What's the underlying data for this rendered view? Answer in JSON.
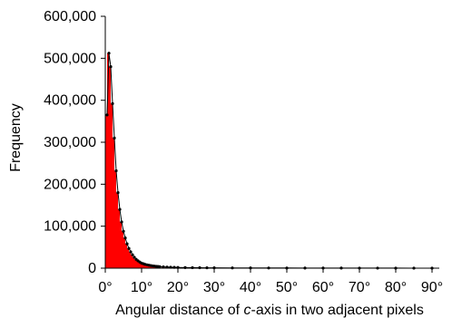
{
  "chart_data": {
    "type": "bar",
    "xlabel_parts": {
      "before": "Angular distance of ",
      "italic": "c",
      "after": "-axis in two adjacent pixels"
    },
    "ylabel": "Frequency",
    "xlim": [
      0,
      92
    ],
    "ylim": [
      0,
      600000
    ],
    "x_tick_values": [
      0,
      10,
      20,
      30,
      40,
      50,
      60,
      70,
      80,
      90
    ],
    "x_tick_labels": [
      "0°",
      "10°",
      "20°",
      "30°",
      "40°",
      "50°",
      "60°",
      "70°",
      "80°",
      "90°"
    ],
    "y_tick_values": [
      0,
      100000,
      200000,
      300000,
      400000,
      500000,
      600000
    ],
    "y_tick_labels": [
      "0",
      "100,000",
      "200,000",
      "300,000",
      "400,000",
      "500,000",
      "600,000"
    ],
    "bar_width_deg": 0.5,
    "bar_color": "#ff0000",
    "marker_color": "#000000",
    "x": [
      0.5,
      1.0,
      1.5,
      2.0,
      2.5,
      3.0,
      3.5,
      4.0,
      4.5,
      5.0,
      5.5,
      6.0,
      6.5,
      7.0,
      7.5,
      8.0,
      8.5,
      9.0,
      9.5,
      10.0,
      10.5,
      11.0,
      11.5,
      12.0,
      12.5,
      13.0,
      13.5,
      14.0,
      14.5,
      15.0,
      16.0,
      17.0,
      18.0,
      19.0,
      20.0,
      22.0,
      24.0,
      26.0,
      28.0,
      30.0,
      35.0,
      40.0,
      45.0,
      50.0,
      55.0,
      60.0,
      65.0,
      70.0,
      75.0,
      80.0,
      85.0,
      90.0
    ],
    "values": [
      365000,
      512000,
      480000,
      392000,
      310000,
      232000,
      180000,
      140000,
      110000,
      88000,
      72000,
      58000,
      47000,
      39000,
      32000,
      26000,
      21000,
      17500,
      14500,
      12000,
      10500,
      9000,
      8000,
      7000,
      6200,
      5500,
      5000,
      4500,
      4000,
      3600,
      3000,
      2600,
      2200,
      1900,
      1700,
      1400,
      1200,
      1000,
      900,
      800,
      650,
      550,
      450,
      380,
      320,
      270,
      220,
      180,
      150,
      120,
      100,
      80
    ]
  }
}
